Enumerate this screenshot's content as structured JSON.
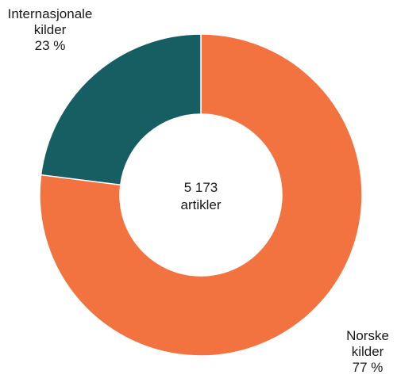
{
  "chart_data": {
    "type": "pie",
    "subtype": "donut",
    "total_value": "5 173",
    "total_unit": "artikler",
    "slices": [
      {
        "label_lines": [
          "Norske",
          "kilder"
        ],
        "value": 77,
        "value_label": "77 %",
        "color": "#f27340"
      },
      {
        "label_lines": [
          "Internasjonale",
          "kilder"
        ],
        "value": 23,
        "value_label": "23 %",
        "color": "#175e62"
      }
    ]
  }
}
